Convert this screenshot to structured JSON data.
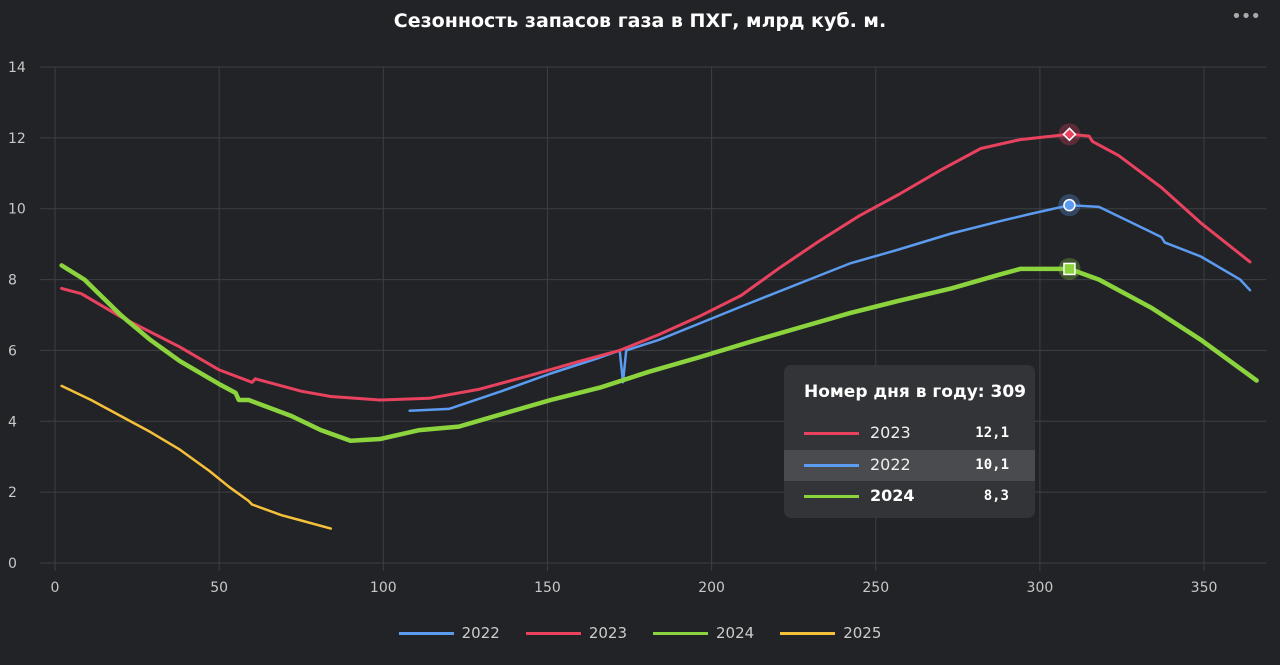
{
  "chart_data": {
    "type": "line",
    "title": "Сезонность запасов газа в ПХГ, млрд куб. м.",
    "xlabel": "",
    "ylabel": "",
    "xlim": [
      0,
      369
    ],
    "ylim": [
      0,
      14
    ],
    "xticks": [
      0,
      50,
      100,
      150,
      200,
      250,
      300,
      350
    ],
    "yticks": [
      0,
      2,
      4,
      6,
      8,
      10,
      12,
      14
    ],
    "grid": true,
    "legend": "bottom",
    "series": [
      {
        "name": "2022",
        "color": "#5b9bf0",
        "x": [
          108,
          120,
          136,
          151,
          166,
          172,
          173,
          174,
          184,
          196,
          212,
          227,
          242,
          257,
          273,
          288,
          297,
          309,
          318,
          327,
          337,
          338,
          349,
          361,
          364
        ],
        "y": [
          4.3,
          4.35,
          4.85,
          5.35,
          5.8,
          6.0,
          5.1,
          6.0,
          6.3,
          6.75,
          7.35,
          7.9,
          8.45,
          8.85,
          9.3,
          9.65,
          9.85,
          10.1,
          10.05,
          9.65,
          9.2,
          9.05,
          8.65,
          8.0,
          7.7
        ]
      },
      {
        "name": "2023",
        "color": "#e8425f",
        "x": [
          2,
          8,
          20,
          38,
          50,
          60,
          61,
          75,
          84,
          99,
          114,
          129,
          145,
          160,
          172,
          184,
          196,
          209,
          221,
          233,
          245,
          257,
          270,
          282,
          294,
          309,
          315,
          316,
          324,
          337,
          349,
          364
        ],
        "y": [
          7.75,
          7.6,
          6.95,
          6.1,
          5.45,
          5.1,
          5.2,
          4.85,
          4.7,
          4.6,
          4.65,
          4.9,
          5.3,
          5.7,
          6.0,
          6.45,
          6.95,
          7.55,
          8.35,
          9.1,
          9.8,
          10.4,
          11.1,
          11.7,
          11.95,
          12.1,
          12.05,
          11.9,
          11.5,
          10.6,
          9.6,
          8.5
        ]
      },
      {
        "name": "2024",
        "color": "#8bd43e",
        "x": [
          2,
          9,
          20,
          29,
          38,
          50,
          55,
          56,
          59,
          72,
          81,
          90,
          99,
          111,
          123,
          136,
          151,
          166,
          181,
          196,
          212,
          227,
          242,
          257,
          273,
          288,
          294,
          309,
          318,
          334,
          349,
          366
        ],
        "y": [
          8.4,
          8.0,
          7.0,
          6.3,
          5.7,
          5.05,
          4.8,
          4.6,
          4.6,
          4.15,
          3.75,
          3.45,
          3.5,
          3.75,
          3.85,
          4.2,
          4.6,
          4.95,
          5.4,
          5.8,
          6.25,
          6.65,
          7.05,
          7.4,
          7.75,
          8.15,
          8.3,
          8.3,
          8.0,
          7.2,
          6.3,
          5.15
        ]
      },
      {
        "name": "2025",
        "color": "#f5c03a",
        "x": [
          2,
          11,
          20,
          29,
          38,
          47,
          53,
          59,
          60,
          69,
          75,
          84
        ],
        "y": [
          5.0,
          4.6,
          4.15,
          3.7,
          3.2,
          2.6,
          2.15,
          1.75,
          1.65,
          1.35,
          1.2,
          0.97
        ]
      }
    ],
    "tooltip": {
      "title": "Номер дня в году: 309",
      "rows": [
        {
          "name": "2023",
          "value": "12,1",
          "color": "#e8425f"
        },
        {
          "name": "2022",
          "value": "10,1",
          "color": "#5b9bf0"
        },
        {
          "name": "2024",
          "value": "8,3",
          "color": "#8bd43e"
        }
      ]
    },
    "hover_day": 309
  },
  "menu_icon": "ellipsis-icon"
}
